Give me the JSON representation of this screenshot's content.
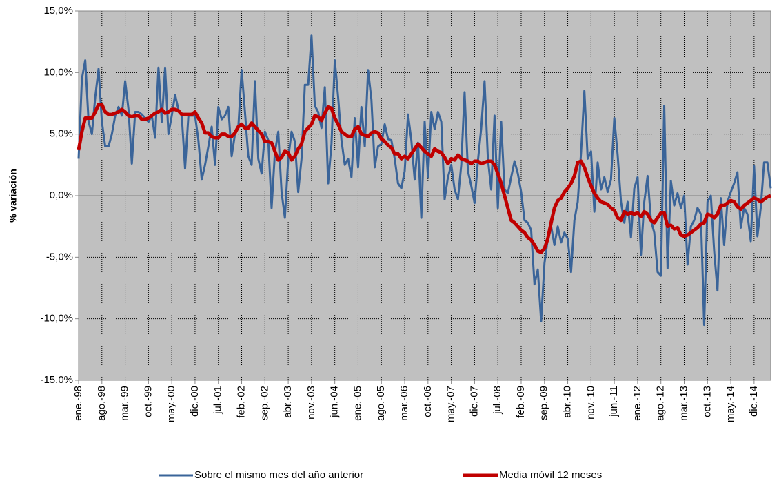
{
  "chart_data": {
    "type": "line",
    "y_label": "% variación",
    "categories": [
      "ene.-98",
      null,
      null,
      null,
      null,
      null,
      null,
      "ago.-98",
      null,
      null,
      null,
      null,
      null,
      null,
      "mar.-99",
      null,
      null,
      null,
      null,
      null,
      null,
      "oct.-99",
      null,
      null,
      null,
      null,
      null,
      null,
      "may.-00",
      null,
      null,
      null,
      null,
      null,
      null,
      "dic.-00",
      null,
      null,
      null,
      null,
      null,
      null,
      "jul.-01",
      null,
      null,
      null,
      null,
      null,
      null,
      "feb.-02",
      null,
      null,
      null,
      null,
      null,
      null,
      "sep.-02",
      null,
      null,
      null,
      null,
      null,
      null,
      "abr.-03",
      null,
      null,
      null,
      null,
      null,
      null,
      "nov.-03",
      null,
      null,
      null,
      null,
      null,
      null,
      "jun.-04",
      null,
      null,
      null,
      null,
      null,
      null,
      "ene.-05",
      null,
      null,
      null,
      null,
      null,
      null,
      "ago.-05",
      null,
      null,
      null,
      null,
      null,
      null,
      "mar.-06",
      null,
      null,
      null,
      null,
      null,
      null,
      "oct.-06",
      null,
      null,
      null,
      null,
      null,
      null,
      "may.-07",
      null,
      null,
      null,
      null,
      null,
      null,
      "dic.-07",
      null,
      null,
      null,
      null,
      null,
      null,
      "jul.-08",
      null,
      null,
      null,
      null,
      null,
      null,
      "feb.-09",
      null,
      null,
      null,
      null,
      null,
      null,
      "sep.-09",
      null,
      null,
      null,
      null,
      null,
      null,
      "abr.-10",
      null,
      null,
      null,
      null,
      null,
      null,
      "nov.-10",
      null,
      null,
      null,
      null,
      null,
      null,
      "jun.-11",
      null,
      null,
      null,
      null,
      null,
      null,
      "ene.-12",
      null,
      null,
      null,
      null,
      null,
      null,
      "ago.-12",
      null,
      null,
      null,
      null,
      null,
      null,
      "mar.-13",
      null,
      null,
      null,
      null,
      null,
      null,
      "oct.-13",
      null,
      null,
      null,
      null,
      null,
      null,
      "may.-14",
      null,
      null,
      null,
      null,
      null,
      null,
      "dic.-14",
      null,
      null,
      null,
      null,
      null
    ],
    "series": [
      {
        "name": "Sobre el mismo mes del año anterior",
        "color": "#3a6499",
        "width": 3,
        "values": [
          3,
          9.5,
          11,
          6,
          5,
          8,
          10.3,
          6,
          4,
          4,
          5,
          6.5,
          7.2,
          6.5,
          9.3,
          7,
          2.6,
          6.8,
          6.8,
          6.6,
          6.3,
          6,
          6.5,
          4.7,
          10.4,
          6,
          10.4,
          5,
          6.5,
          8.2,
          7,
          6.5,
          2.2,
          6.5,
          6.5,
          6.5,
          4.5,
          1.3,
          2.5,
          4,
          5.6,
          2.5,
          7.2,
          6.2,
          6.5,
          7.2,
          3.2,
          5,
          5.5,
          10.2,
          6.8,
          3.2,
          2.5,
          9.3,
          3,
          1.8,
          5.2,
          4.5,
          -1,
          3.5,
          5.2,
          0.3,
          -1.8,
          3,
          5.2,
          4.4,
          0.3,
          3,
          9,
          9,
          13,
          7.3,
          6.8,
          5.5,
          8.8,
          1,
          4.2,
          11,
          8,
          4.5,
          2.5,
          3,
          1.5,
          6.3,
          2.3,
          7.2,
          4,
          10.2,
          7.8,
          2.3,
          4,
          4.2,
          5.8,
          4.6,
          4.5,
          3,
          1,
          0.6,
          2,
          6.6,
          4.5,
          1.3,
          4.3,
          -1.8,
          6,
          1.5,
          6.8,
          5.4,
          6.8,
          6,
          -0.3,
          1.5,
          2.5,
          0.5,
          -0.3,
          2.5,
          8.4,
          2,
          0.8,
          -0.6,
          2.8,
          5.5,
          9.3,
          3,
          0.5,
          6.5,
          -1,
          6,
          0.5,
          0.2,
          1.5,
          2.8,
          1.8,
          0.3,
          -2,
          -2.2,
          -2.8,
          -7.2,
          -6,
          -10.2,
          -5.5,
          -3.5,
          -2.5,
          -4,
          -2.5,
          -3.8,
          -3,
          -3.5,
          -6.2,
          -2,
          -0.5,
          3.5,
          8.5,
          3,
          3.6,
          -1.3,
          2.7,
          0.5,
          1.5,
          0.3,
          1.3,
          6.3,
          3.3,
          -0.5,
          -2.2,
          -0.5,
          -3.4,
          0.6,
          1.5,
          -4.8,
          -0.5,
          1.6,
          -2,
          -3,
          -6.2,
          -6.5,
          7.3,
          -5.9,
          1.2,
          -0.8,
          0.2,
          -1,
          0,
          -5.6,
          -2.5,
          -2,
          -1,
          -1.5,
          -10.5,
          -0.5,
          0,
          -4.5,
          -7.7,
          -0.2,
          -4,
          -0.5,
          0.3,
          1,
          1.9,
          -2.6,
          -1,
          -1.5,
          -3.7,
          2.4,
          -3.3,
          -1,
          2.7,
          2.7,
          0.6
        ]
      },
      {
        "name": "Media móvil 12 meses",
        "color": "#c00000",
        "width": 5,
        "values": [
          3.7,
          5.2,
          6.3,
          6.3,
          6.3,
          6.8,
          7.4,
          7.4,
          6.8,
          6.6,
          6.6,
          6.7,
          6.8,
          7,
          6.8,
          6.5,
          6.4,
          6.5,
          6.5,
          6.2,
          6.2,
          6.3,
          6.5,
          6.7,
          6.8,
          7,
          6.7,
          6.8,
          7,
          7,
          6.9,
          6.6,
          6.6,
          6.6,
          6.6,
          6.8,
          6.3,
          5.9,
          5.1,
          5.1,
          4.8,
          4.7,
          4.7,
          5,
          5,
          4.8,
          4.8,
          5.1,
          5.6,
          5.8,
          5.5,
          5.5,
          5.9,
          5.6,
          5.3,
          5,
          4.4,
          4.4,
          4.3,
          3.6,
          2.9,
          3.1,
          3.6,
          3.5,
          2.9,
          3.2,
          3.8,
          4.2,
          5.2,
          5.5,
          5.8,
          6.5,
          6.4,
          6.1,
          6.7,
          7.2,
          7.1,
          6.3,
          5.8,
          5.2,
          5,
          4.8,
          4.8,
          5.4,
          5.6,
          5,
          4.9,
          4.8,
          5.1,
          5.2,
          5.1,
          4.6,
          4.4,
          4.1,
          3.9,
          3.4,
          3.4,
          3,
          3.2,
          3,
          3.4,
          3.8,
          4.2,
          3.9,
          3.6,
          3.4,
          3.2,
          3.8,
          3.6,
          3.5,
          3.1,
          2.6,
          3,
          2.9,
          3.3,
          3,
          2.9,
          2.8,
          2.6,
          2.8,
          2.8,
          2.6,
          2.7,
          2.8,
          2.8,
          2.5,
          1.8,
          1,
          0,
          -1,
          -2,
          -2.2,
          -2.5,
          -2.8,
          -3,
          -3.4,
          -3.6,
          -4,
          -4.5,
          -4.6,
          -4.3,
          -3.5,
          -2.2,
          -1,
          -0.4,
          -0.2,
          0.3,
          0.6,
          1,
          1.6,
          2.7,
          2.8,
          2.3,
          1.5,
          0.8,
          0.2,
          -0.2,
          -0.5,
          -0.6,
          -0.7,
          -1,
          -1.2,
          -1.8,
          -2,
          -1.3,
          -1.5,
          -1.4,
          -1.5,
          -1.4,
          -1.7,
          -1.3,
          -1.5,
          -2,
          -2.2,
          -1.8,
          -1.4,
          -1.4,
          -2.5,
          -2.4,
          -2.7,
          -2.6,
          -3.2,
          -3.3,
          -3.2,
          -3,
          -2.8,
          -2.6,
          -2.3,
          -2.2,
          -1.5,
          -1.6,
          -1.8,
          -1.5,
          -0.8,
          -0.8,
          -0.6,
          -0.4,
          -0.5,
          -0.9,
          -1.1,
          -0.8,
          -0.6,
          -0.4,
          -0.2,
          -0.3,
          -0.5,
          -0.3,
          -0.1,
          0
        ]
      }
    ],
    "ylim": [
      -15,
      15
    ],
    "yticks": [
      {
        "value": -15,
        "label": "-15,0%"
      },
      {
        "value": -10,
        "label": "-10,0%"
      },
      {
        "value": -5,
        "label": "-5,0%"
      },
      {
        "value": 0,
        "label": "0,0%"
      },
      {
        "value": 5,
        "label": "5,0%"
      },
      {
        "value": 10,
        "label": "10,0%"
      },
      {
        "value": 15,
        "label": "15,0%"
      }
    ],
    "grid": true,
    "background": "#c0c0c0",
    "legend": "bottom"
  }
}
